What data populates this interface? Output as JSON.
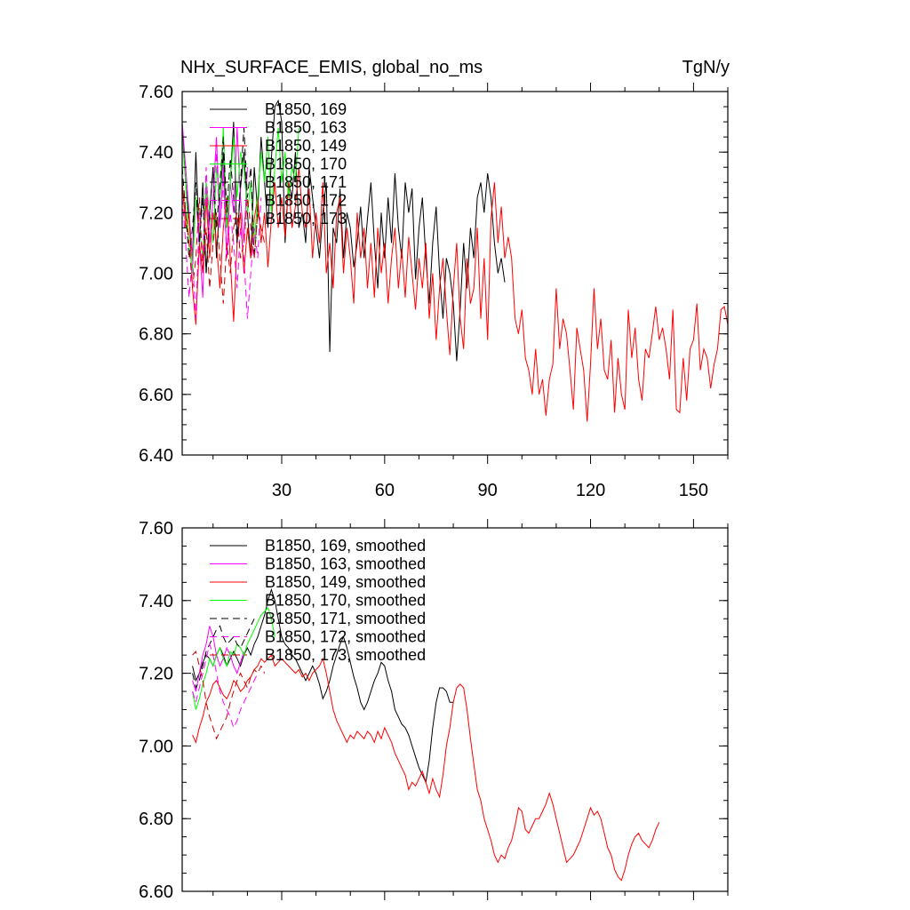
{
  "chart_data": [
    {
      "type": "line",
      "title": "NHx_SURFACE_EMIS, global_no_ms",
      "units": "TgN/y",
      "xlim": [
        1,
        160
      ],
      "ylim": [
        6.4,
        7.6
      ],
      "xticks": [
        30,
        60,
        90,
        120,
        150
      ],
      "xtick_labels": [
        "30",
        "60",
        "90",
        "120",
        "150"
      ],
      "yticks": [
        6.4,
        6.6,
        6.8,
        7.0,
        7.2,
        7.4,
        7.6
      ],
      "ytick_labels": [
        "6.40",
        "6.60",
        "6.80",
        "7.00",
        "7.20",
        "7.40",
        "7.60"
      ],
      "legend_position": "top-left",
      "series": [
        {
          "name": "B1850, 169",
          "color": "#000000",
          "dash": "solid",
          "x_start": 1,
          "values": [
            7.48,
            7.3,
            7.18,
            7.05,
            7.4,
            7.1,
            7.3,
            7.0,
            7.2,
            7.35,
            7.05,
            7.25,
            7.4,
            7.15,
            7.3,
            7.5,
            7.1,
            7.28,
            7.4,
            7.2,
            7.05,
            7.35,
            7.2,
            7.45,
            7.3,
            7.15,
            7.38,
            7.55,
            7.57,
            7.5,
            7.1,
            7.3,
            7.25,
            7.4,
            7.15,
            7.2,
            7.1,
            7.35,
            7.25,
            7.15,
            7.05,
            7.2,
            7.3,
            6.74,
            7.15,
            7.1,
            7.28,
            7.05,
            7.2,
            7.15,
            7.02,
            7.1,
            7.22,
            7.05,
            7.18,
            7.3,
            7.1,
            6.95,
            7.2,
            7.05,
            7.25,
            7.1,
            7.33,
            7.15,
            7.05,
            7.3,
            7.2,
            7.28,
            6.98,
            7.15,
            7.25,
            7.05,
            6.9,
            7.1,
            7.22,
            7.0,
            6.85,
            7.05,
            7.0,
            6.9,
            6.71,
            6.88,
            7.1,
            6.95,
            7.15,
            7.05,
            7.25,
            7.3,
            7.2,
            7.33,
            7.25,
            7.1,
            7.0,
            7.05,
            6.97
          ]
        },
        {
          "name": "B1850, 163",
          "color": "#ff00ff",
          "dash": "solid",
          "x_start": 1,
          "values": [
            7.5,
            7.35,
            7.2,
            7.05,
            7.25,
            7.1,
            6.92,
            7.3,
            7.1,
            7.25,
            7.45,
            7.15,
            7.35,
            7.05,
            7.3,
            7.2,
            7.48,
            7.25,
            7.1,
            7.35
          ]
        },
        {
          "name": "B1850, 149",
          "color": "#ff0000",
          "dash": "solid",
          "x_start": 1,
          "values": [
            7.3,
            7.15,
            7.2,
            6.95,
            6.83,
            7.1,
            7.0,
            7.25,
            7.05,
            7.2,
            7.1,
            6.95,
            7.15,
            7.25,
            7.05,
            6.84,
            7.1,
            7.2,
            7.0,
            7.15,
            7.05,
            7.18,
            7.25,
            7.1,
            7.2,
            7.02,
            7.18,
            7.3,
            7.15,
            7.25,
            7.12,
            7.3,
            7.15,
            7.22,
            7.35,
            7.2,
            7.15,
            7.28,
            7.05,
            7.2,
            7.1,
            7.3,
            7.0,
            7.1,
            6.95,
            7.2,
            7.25,
            7.0,
            7.15,
            7.05,
            6.9,
            7.2,
            7.05,
            7.15,
            6.95,
            7.1,
            6.92,
            7.15,
            7.0,
            7.1,
            6.9,
            7.05,
            7.15,
            6.95,
            7.08,
            6.92,
            7.12,
            7.0,
            6.88,
            7.05,
            6.95,
            7.1,
            6.85,
            7.0,
            6.78,
            6.95,
            7.05,
            6.88,
            6.73,
            6.95,
            7.1,
            6.85,
            6.75,
            7.05,
            6.9,
            6.95,
            7.15,
            6.85,
            7.05,
            6.78,
            7.18,
            7.3,
            7.1,
            7.22,
            7.05,
            7.12,
            7.05,
            6.85,
            6.8,
            6.88,
            6.72,
            6.68,
            6.6,
            6.75,
            6.6,
            6.65,
            6.53,
            6.65,
            6.7,
            6.95,
            6.75,
            6.85,
            6.8,
            6.68,
            6.55,
            6.82,
            6.75,
            6.68,
            6.51,
            6.7,
            6.95,
            6.75,
            6.85,
            6.68,
            6.65,
            6.78,
            6.54,
            6.72,
            6.6,
            6.55,
            6.88,
            6.72,
            6.82,
            6.65,
            6.58,
            6.75,
            6.72,
            6.8,
            6.89,
            6.78,
            6.82,
            6.75,
            6.65,
            6.88,
            6.55,
            6.54,
            6.72,
            6.58,
            6.75,
            6.78,
            6.9,
            6.68,
            6.75,
            6.72,
            6.62,
            6.7,
            6.75,
            6.88,
            6.89,
            6.83,
            6.88
          ]
        },
        {
          "name": "B1850, 170",
          "color": "#00ff00",
          "dash": "solid",
          "x_start": 1,
          "values": [
            7.45,
            7.3,
            7.1,
            7.0,
            7.25,
            7.15,
            7.05,
            7.3,
            7.2,
            7.1,
            7.35,
            7.25,
            7.48,
            7.15,
            7.3,
            7.45,
            7.25,
            7.4,
            7.35,
            7.2,
            7.3,
            7.1,
            7.25,
            7.4,
            7.3,
            7.45,
            7.2,
            7.35,
            7.48,
            7.3,
            7.4,
            7.25,
            7.35,
            7.3,
            7.48
          ]
        },
        {
          "name": "B1850, 171",
          "color": "#000000",
          "dash": "dashed",
          "x_start": 1,
          "values": [
            7.35,
            7.2,
            7.05,
            7.15,
            7.3,
            7.1,
            7.25,
            7.0,
            7.2,
            7.35,
            7.15,
            7.3,
            7.45,
            7.2,
            7.38,
            7.25,
            7.1,
            7.3,
            7.48,
            7.25,
            7.35,
            7.05,
            7.2
          ]
        },
        {
          "name": "B1850, 172",
          "color": "#ff00ff",
          "dash": "dashed",
          "x_start": 1,
          "values": [
            7.25,
            7.1,
            6.92,
            7.05,
            6.85,
            7.2,
            7.05,
            7.35,
            7.1,
            7.25,
            7.4,
            7.15,
            7.3,
            7.05,
            7.2,
            7.1,
            6.95,
            7.15,
            7.05,
            6.85,
            7.0,
            7.15,
            7.05,
            7.25
          ]
        },
        {
          "name": "B1850, 173",
          "color": "#cc0000",
          "dash": "dashed",
          "x_start": 1,
          "values": [
            7.3,
            7.2,
            7.1,
            6.95,
            7.05,
            7.25,
            7.0,
            7.15,
            6.95,
            7.1,
            7.2,
            7.05,
            6.9,
            7.1,
            7.0,
            7.15,
            7.2,
            7.05,
            7.1,
            7.25,
            7.15,
            7.05,
            7.2,
            7.15,
            7.1
          ]
        }
      ]
    },
    {
      "type": "line",
      "xlim": [
        1,
        160
      ],
      "ylim": [
        6.6,
        7.6
      ],
      "xticks": [
        30,
        60,
        90,
        120,
        150
      ],
      "yticks": [
        6.6,
        6.8,
        7.0,
        7.2,
        7.4,
        7.6
      ],
      "ytick_labels": [
        "6.60",
        "6.80",
        "7.00",
        "7.20",
        "7.40",
        "7.60"
      ],
      "legend_position": "top-left",
      "series": [
        {
          "name": "B1850, 169, smoothed",
          "color": "#000000",
          "dash": "solid",
          "x_start": 4,
          "values": [
            7.22,
            7.18,
            7.2,
            7.23,
            7.25,
            7.24,
            7.22,
            7.25,
            7.27,
            7.25,
            7.22,
            7.24,
            7.26,
            7.24,
            7.22,
            7.25,
            7.27,
            7.25,
            7.28,
            7.3,
            7.33,
            7.36,
            7.4,
            7.43,
            7.4,
            7.35,
            7.3,
            7.28,
            7.27,
            7.25,
            7.24,
            7.22,
            7.2,
            7.18,
            7.2,
            7.22,
            7.2,
            7.17,
            7.13,
            7.15,
            7.18,
            7.22,
            7.25,
            7.28,
            7.3,
            7.27,
            7.23,
            7.19,
            7.16,
            7.12,
            7.1,
            7.12,
            7.15,
            7.18,
            7.2,
            7.23,
            7.22,
            7.18,
            7.15,
            7.1,
            7.08,
            7.06,
            7.05,
            7.03,
            7.0,
            6.97,
            6.94,
            6.92,
            6.9,
            6.96,
            7.05,
            7.12,
            7.16,
            7.16,
            7.15,
            7.12,
            7.12
          ]
        },
        {
          "name": "B1850, 163, smoothed",
          "color": "#ff00ff",
          "dash": "solid",
          "x_start": 4,
          "values": [
            7.18,
            7.15,
            7.2,
            7.25,
            7.28,
            7.33,
            7.3,
            7.25,
            7.22,
            7.24,
            7.27,
            7.25,
            7.22,
            7.2,
            7.23,
            7.26
          ]
        },
        {
          "name": "B1850, 149, smoothed",
          "color": "#ff0000",
          "dash": "solid",
          "x_start": 4,
          "values": [
            7.03,
            7.01,
            7.05,
            7.08,
            7.12,
            7.14,
            7.17,
            7.18,
            7.16,
            7.14,
            7.13,
            7.15,
            7.18,
            7.17,
            7.15,
            7.16,
            7.18,
            7.19,
            7.21,
            7.22,
            7.24,
            7.23,
            7.24,
            7.25,
            7.22,
            7.23,
            7.24,
            7.23,
            7.22,
            7.21,
            7.2,
            7.21,
            7.19,
            7.2,
            7.18,
            7.2,
            7.21,
            7.22,
            7.24,
            7.2,
            7.15,
            7.1,
            7.07,
            7.05,
            7.03,
            7.01,
            7.03,
            7.02,
            7.04,
            7.03,
            7.02,
            7.04,
            7.03,
            7.01,
            7.04,
            7.02,
            7.05,
            7.03,
            7.01,
            6.98,
            6.96,
            6.94,
            6.92,
            6.88,
            6.9,
            6.89,
            6.91,
            6.93,
            6.9,
            6.87,
            6.91,
            6.88,
            6.86,
            6.92,
            7.0,
            7.05,
            7.12,
            7.16,
            7.17,
            7.16,
            7.1,
            7.02,
            6.95,
            6.88,
            6.85,
            6.8,
            6.77,
            6.74,
            6.7,
            6.68,
            6.7,
            6.69,
            6.72,
            6.74,
            6.78,
            6.83,
            6.82,
            6.77,
            6.76,
            6.78,
            6.8,
            6.8,
            6.82,
            6.84,
            6.87,
            6.84,
            6.8,
            6.76,
            6.72,
            6.68,
            6.69,
            6.7,
            6.72,
            6.74,
            6.77,
            6.8,
            6.83,
            6.81,
            6.82,
            6.8,
            6.76,
            6.72,
            6.7,
            6.66,
            6.64,
            6.63,
            6.66,
            6.7,
            6.73,
            6.75,
            6.76,
            6.74,
            6.73,
            6.72,
            6.74,
            6.77,
            6.79
          ]
        },
        {
          "name": "B1850, 170, smoothed",
          "color": "#00ff00",
          "dash": "solid",
          "x_start": 4,
          "values": [
            7.15,
            7.1,
            7.13,
            7.17,
            7.2,
            7.24,
            7.22,
            7.25,
            7.27,
            7.24,
            7.22,
            7.26,
            7.25,
            7.28,
            7.27,
            7.25,
            7.28,
            7.3,
            7.32,
            7.34,
            7.36,
            7.37,
            7.38,
            7.35,
            7.3
          ]
        },
        {
          "name": "B1850, 171, smoothed",
          "color": "#000000",
          "dash": "dashed",
          "x_start": 4,
          "values": [
            7.2,
            7.16,
            7.18,
            7.22,
            7.26,
            7.28,
            7.3,
            7.32,
            7.33,
            7.3,
            7.28,
            7.29,
            7.3,
            7.28,
            7.27,
            7.29,
            7.31,
            7.33,
            7.35
          ]
        },
        {
          "name": "B1850, 172, smoothed",
          "color": "#ff00ff",
          "dash": "dashed",
          "x_start": 4,
          "values": [
            7.15,
            7.12,
            7.16,
            7.2,
            7.24,
            7.28,
            7.25,
            7.2,
            7.15,
            7.12,
            7.1,
            7.08,
            7.05,
            7.07,
            7.1,
            7.12,
            7.14,
            7.16,
            7.18,
            7.2
          ]
        },
        {
          "name": "B1850, 173, smoothed",
          "color": "#cc0000",
          "dash": "dashed",
          "x_start": 4,
          "values": [
            7.25,
            7.26,
            7.22,
            7.18,
            7.12,
            7.08,
            7.05,
            7.02,
            7.04,
            7.06,
            7.08,
            7.12,
            7.15,
            7.18,
            7.2,
            7.18,
            7.16,
            7.19,
            7.21,
            7.2,
            7.22,
            7.2
          ]
        }
      ]
    }
  ]
}
